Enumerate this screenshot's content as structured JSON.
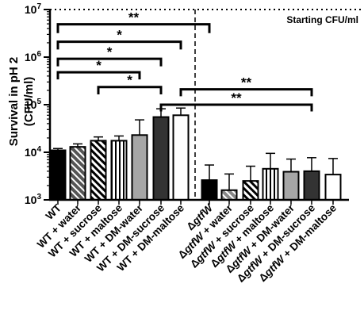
{
  "chart_data": {
    "type": "bar",
    "ylabel_lines": [
      "Survival in pH 2",
      "(CFU/ml)"
    ],
    "yscale": "log",
    "ylim": [
      1000,
      10000000
    ],
    "y_ticks": [
      {
        "value": 1000,
        "base": "10",
        "exp": "3"
      },
      {
        "value": 10000,
        "base": "10",
        "exp": "4"
      },
      {
        "value": 100000,
        "base": "10",
        "exp": "5"
      },
      {
        "value": 1000000,
        "base": "10",
        "exp": "6"
      },
      {
        "value": 10000000,
        "base": "10",
        "exp": "7"
      }
    ],
    "reference_line": {
      "value": 10000000,
      "label": "Starting CFU/ml",
      "style": "dotted"
    },
    "separator_after_index": 6,
    "categories": [
      {
        "prefix": "",
        "strain": "WT",
        "suffix": "",
        "value": 11000,
        "err": 12000,
        "fill": "#000000",
        "pattern": "solid"
      },
      {
        "prefix": "",
        "strain": "WT",
        "suffix": " + water",
        "value": 13000,
        "err": 15000,
        "fill": "#555555",
        "pattern": "hatch"
      },
      {
        "prefix": "",
        "strain": "WT",
        "suffix": " + sucrose",
        "value": 17500,
        "err": 21000,
        "fill": "#ffffff",
        "pattern": "hatch"
      },
      {
        "prefix": "",
        "strain": "WT",
        "suffix": " + maltose",
        "value": 17500,
        "err": 22000,
        "fill": "#ffffff",
        "pattern": "stripe"
      },
      {
        "prefix": "",
        "strain": "WT",
        "suffix": " + DM-water",
        "value": 23000,
        "err": 48000,
        "fill": "#a6a6a6",
        "pattern": "solid"
      },
      {
        "prefix": "",
        "strain": "WT",
        "suffix": " + DM-sucrose",
        "value": 55000,
        "err": 82000,
        "fill": "#333333",
        "pattern": "solid"
      },
      {
        "prefix": "",
        "strain": "WT",
        "suffix": " + DM-maltose",
        "value": 60000,
        "err": 85000,
        "fill": "#ffffff",
        "pattern": "solid"
      },
      {
        "prefix": "Δ",
        "strain": "gtfW",
        "suffix": "",
        "value": 2600,
        "err": 5400,
        "fill": "#000000",
        "pattern": "solid"
      },
      {
        "prefix": "Δ",
        "strain": "gtfW",
        "suffix": " + water",
        "value": 1600,
        "err": 3500,
        "fill": "#888888",
        "pattern": "hatch"
      },
      {
        "prefix": "Δ",
        "strain": "gtfW",
        "suffix": " + sucrose",
        "value": 2500,
        "err": 5100,
        "fill": "#ffffff",
        "pattern": "hatch"
      },
      {
        "prefix": "Δ",
        "strain": "gtfW",
        "suffix": " + maltose",
        "value": 4500,
        "err": 9500,
        "fill": "#ffffff",
        "pattern": "stripe"
      },
      {
        "prefix": "Δ",
        "strain": "gtfW",
        "suffix": " + DM-water",
        "value": 3900,
        "err": 7200,
        "fill": "#a6a6a6",
        "pattern": "solid"
      },
      {
        "prefix": "Δ",
        "strain": "gtfW",
        "suffix": " + DM-sucrose",
        "value": 4000,
        "err": 7700,
        "fill": "#333333",
        "pattern": "solid"
      },
      {
        "prefix": "Δ",
        "strain": "gtfW",
        "suffix": " + DM-maltose",
        "value": 3400,
        "err": 7400,
        "fill": "#ffffff",
        "pattern": "solid"
      }
    ],
    "significance": [
      {
        "from": 0,
        "to": 7,
        "label": "**",
        "y": 4900000,
        "drop_to": 3200000
      },
      {
        "from": 0,
        "to": 6,
        "label": "*",
        "y": 2100000,
        "drop_to": 1450000
      },
      {
        "from": 0,
        "to": 5,
        "label": "*",
        "y": 920000,
        "drop_to": 640000
      },
      {
        "from": 0,
        "to": 4,
        "label": "*",
        "y": 480000,
        "drop_to": 340000
      },
      {
        "from": 2,
        "to": 5,
        "label": "*",
        "y": 235000,
        "drop_to": 165000
      },
      {
        "from": 6,
        "to": 12,
        "label": "**",
        "y": 210000,
        "drop_to": 150000
      },
      {
        "from": 5,
        "to": 12,
        "label": "**",
        "y": 100000,
        "drop_to": 72000
      }
    ]
  }
}
